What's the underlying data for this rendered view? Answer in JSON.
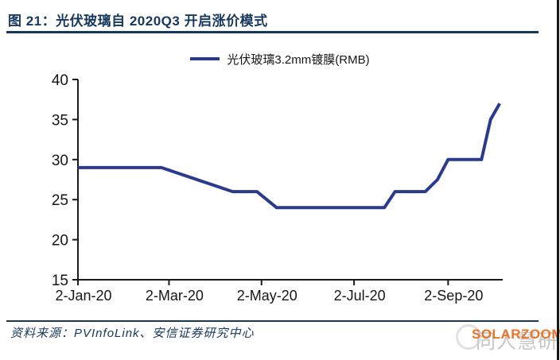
{
  "page": {
    "title": "图 21：光伏玻璃自 2020Q3 开启涨价模式",
    "source": "资料来源：PVInfoLink、安信证券研究中心"
  },
  "watermark": {
    "brand": "SOLARZOOM",
    "chinese": "同人慧研"
  },
  "colors": {
    "navy": "#17375e",
    "line_blue": "#2a3b8e",
    "axis": "#1a1a1a",
    "watermark_orange": "#e8752a",
    "watermark_gray": "#c6c6c6"
  },
  "chart_data": {
    "type": "line",
    "legend_position": "top-center",
    "grid": false,
    "ylim": [
      15,
      40
    ],
    "y_ticks": [
      15,
      20,
      25,
      30,
      35,
      40
    ],
    "x_ticks": [
      "2-Jan-20",
      "2-Mar-20",
      "2-May-20",
      "2-Jul-20",
      "2-Sep-20"
    ],
    "x_domain": [
      "2-Jan-20",
      "8-Oct-20"
    ],
    "series": [
      {
        "name": "光伏玻璃3.2mm镀膜(RMB)",
        "points": [
          {
            "date": "2-Jan-20",
            "value": 29
          },
          {
            "date": "26-Feb-20",
            "value": 29
          },
          {
            "date": "13-Apr-20",
            "value": 26
          },
          {
            "date": "29-Apr-20",
            "value": 26
          },
          {
            "date": "12-May-20",
            "value": 24
          },
          {
            "date": "22-Jul-20",
            "value": 24
          },
          {
            "date": "29-Jul-20",
            "value": 26
          },
          {
            "date": "18-Aug-20",
            "value": 26
          },
          {
            "date": "26-Aug-20",
            "value": 27.5
          },
          {
            "date": "2-Sep-20",
            "value": 30
          },
          {
            "date": "24-Sep-20",
            "value": 30
          },
          {
            "date": "30-Sep-20",
            "value": 35
          },
          {
            "date": "6-Oct-20",
            "value": 37
          }
        ]
      }
    ]
  }
}
